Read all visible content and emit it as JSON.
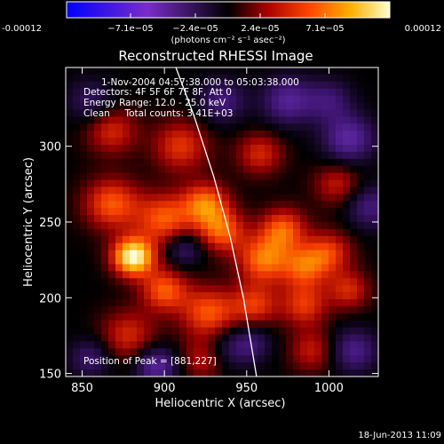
{
  "chart_data": {
    "type": "heatmap",
    "title": "Reconstructed RHESSI Image",
    "xlabel": "Heliocentric X (arcsec)",
    "ylabel": "Heliocentric Y (arcsec)",
    "xlim": [
      840,
      1030
    ],
    "ylim": [
      148,
      352
    ],
    "x_ticks": [
      850,
      900,
      950,
      1000
    ],
    "y_ticks": [
      150,
      200,
      250,
      300
    ],
    "colorbar": {
      "min": -0.00012,
      "max": 0.00012,
      "tick_labels": [
        "-0.00012",
        "−7.1e−05",
        "−2.4e−05",
        "2.4e−05",
        "7.1e−05",
        "0.00012"
      ],
      "unit_label": "(photons cm⁻² s⁻¹ asec⁻²)"
    },
    "annotations": [
      "1-Nov-2004 04:57:38.000 to 05:03:38.000",
      "Detectors: 4F 5F 6F 7F 8F, Att 0",
      "Energy Range: 12.0 - 25.0 keV",
      "Clean     Total counts: 3.41E+03"
    ],
    "peak_label": "Position of Peak = [881,227]",
    "peak": {
      "x": 881,
      "y": 227
    },
    "limb_curve": {
      "x": [
        907,
        918,
        930,
        940,
        948,
        956
      ],
      "y": [
        352,
        320,
        280,
        240,
        200,
        148
      ]
    },
    "blobs": [
      {
        "x": 881,
        "y": 227,
        "a": 1.0,
        "s": 9
      },
      {
        "x": 868,
        "y": 262,
        "a": 0.55,
        "s": 12
      },
      {
        "x": 900,
        "y": 252,
        "a": 0.55,
        "s": 12
      },
      {
        "x": 925,
        "y": 262,
        "a": 0.6,
        "s": 10
      },
      {
        "x": 935,
        "y": 244,
        "a": 0.55,
        "s": 10
      },
      {
        "x": 960,
        "y": 225,
        "a": 0.6,
        "s": 11
      },
      {
        "x": 972,
        "y": 245,
        "a": 0.55,
        "s": 10
      },
      {
        "x": 985,
        "y": 220,
        "a": 0.5,
        "s": 10
      },
      {
        "x": 1000,
        "y": 230,
        "a": 0.45,
        "s": 10
      },
      {
        "x": 900,
        "y": 205,
        "a": 0.55,
        "s": 10
      },
      {
        "x": 927,
        "y": 190,
        "a": 0.55,
        "s": 12
      },
      {
        "x": 955,
        "y": 195,
        "a": 0.45,
        "s": 10
      },
      {
        "x": 985,
        "y": 195,
        "a": 0.45,
        "s": 10
      },
      {
        "x": 1012,
        "y": 205,
        "a": 0.4,
        "s": 9
      },
      {
        "x": 868,
        "y": 310,
        "a": 0.4,
        "s": 11
      },
      {
        "x": 910,
        "y": 300,
        "a": 0.45,
        "s": 12
      },
      {
        "x": 958,
        "y": 295,
        "a": 0.4,
        "s": 10
      },
      {
        "x": 878,
        "y": 175,
        "a": 0.4,
        "s": 12
      },
      {
        "x": 925,
        "y": 160,
        "a": 0.4,
        "s": 10
      },
      {
        "x": 990,
        "y": 165,
        "a": 0.35,
        "s": 10
      },
      {
        "x": 1005,
        "y": 275,
        "a": 0.35,
        "s": 10
      },
      {
        "x": 975,
        "y": 330,
        "a": -0.5,
        "s": 11
      },
      {
        "x": 935,
        "y": 330,
        "a": -0.4,
        "s": 10
      },
      {
        "x": 1012,
        "y": 305,
        "a": -0.55,
        "s": 11
      },
      {
        "x": 1025,
        "y": 260,
        "a": -0.4,
        "s": 10
      },
      {
        "x": 855,
        "y": 330,
        "a": -0.3,
        "s": 10
      },
      {
        "x": 912,
        "y": 232,
        "a": -0.35,
        "s": 8
      },
      {
        "x": 935,
        "y": 165,
        "a": -0.3,
        "s": 10
      },
      {
        "x": 952,
        "y": 170,
        "a": -0.35,
        "s": 9
      },
      {
        "x": 1015,
        "y": 165,
        "a": -0.45,
        "s": 10
      },
      {
        "x": 895,
        "y": 155,
        "a": -0.55,
        "s": 9
      },
      {
        "x": 855,
        "y": 160,
        "a": -0.35,
        "s": 9
      },
      {
        "x": 1000,
        "y": 330,
        "a": -0.35,
        "s": 10
      }
    ]
  },
  "footer": {
    "date": "18-Jun-2013 11:09"
  }
}
